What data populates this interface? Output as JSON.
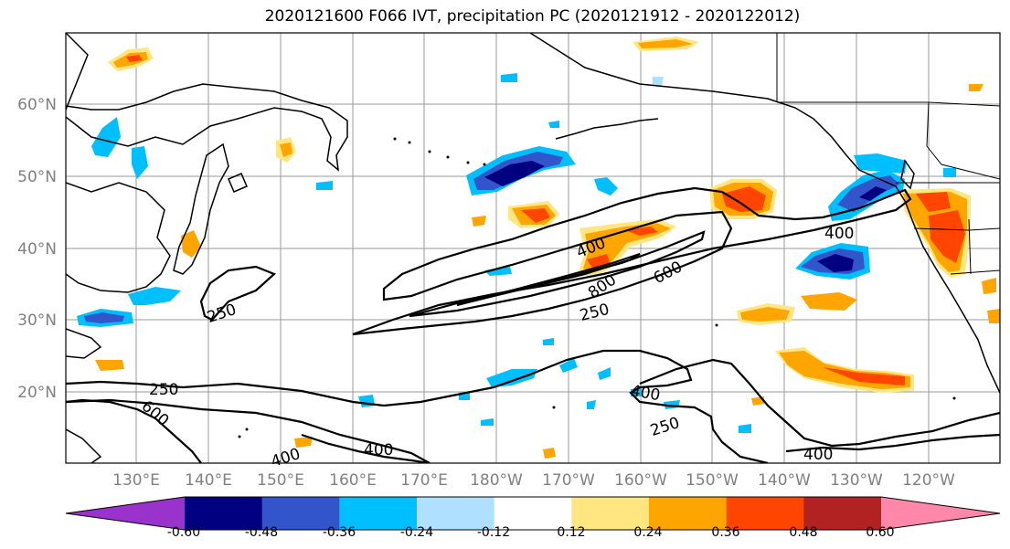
{
  "title": "2020121600 F066 IVT, precipitation PC (2020121912 - 2020122012)",
  "lat_labels": [
    "60°N",
    "50°N",
    "40°N",
    "30°N",
    "20°N"
  ],
  "lon_labels": [
    "130°E",
    "140°E",
    "150°E",
    "160°E",
    "170°E",
    "180°W",
    "170°W",
    "160°W",
    "150°W",
    "140°W",
    "130°W",
    "120°W"
  ],
  "ivt_contour_labels": [
    "250",
    "400",
    "600",
    "800",
    "250",
    "600",
    "250",
    "400",
    "400",
    "250",
    "400",
    "400"
  ],
  "colorbar": {
    "ticks": [
      "-0.60",
      "-0.48",
      "-0.36",
      "-0.24",
      "-0.12",
      "0.12",
      "0.24",
      "0.36",
      "0.48",
      "0.60"
    ],
    "colors": [
      "#9933cc",
      "#000080",
      "#3355cc",
      "#00bfff",
      "#b0e0ff",
      "#ffffff",
      "#ffe680",
      "#ffa500",
      "#ff4500",
      "#b22222",
      "#ff88aa"
    ]
  }
}
